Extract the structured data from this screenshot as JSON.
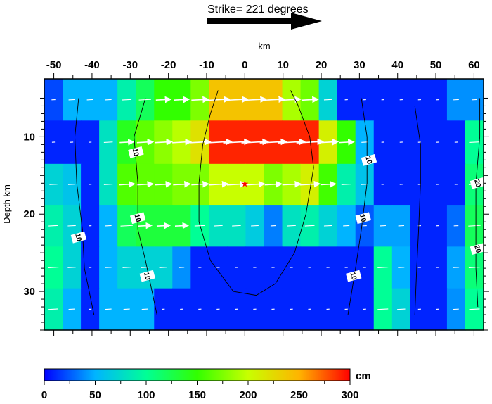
{
  "header": {
    "strike_text": "Strike= 221 degrees",
    "x_unit": "km"
  },
  "colorbar": {
    "unit": "cm",
    "ticks": [
      "0",
      "50",
      "100",
      "150",
      "200",
      "250",
      "300"
    ],
    "range": [
      0,
      300
    ]
  },
  "chart_data": {
    "type": "heatmap",
    "title": "",
    "xlabel": "km",
    "ylabel": "Depth km",
    "xlim": [
      -52.5,
      62.5
    ],
    "ylim": [
      2.5,
      35
    ],
    "x_ticks": [
      -50,
      -40,
      -30,
      -20,
      -10,
      0,
      10,
      20,
      30,
      40,
      50,
      60
    ],
    "y_ticks": [
      10,
      20,
      30
    ],
    "y_inverted": true,
    "colormap": [
      "#0000ff",
      "#00b4ff",
      "#00ff96",
      "#32ff00",
      "#c8ff00",
      "#ffb400",
      "#ff0000"
    ],
    "value_unit": "cm",
    "hypocenter": {
      "x": 0,
      "y": 16
    },
    "rows": [
      {
        "top": 2.5,
        "bottom": 7.9,
        "values": [
          20,
          50,
          50,
          50,
          90,
          120,
          150,
          150,
          175,
          240,
          240,
          240,
          240,
          190,
          170,
          70,
          10,
          10,
          10,
          10,
          10,
          10,
          40,
          40
        ]
      },
      {
        "top": 7.9,
        "bottom": 13.5,
        "values": [
          10,
          10,
          10,
          80,
          140,
          165,
          180,
          195,
          220,
          290,
          290,
          290,
          290,
          290,
          290,
          210,
          150,
          50,
          10,
          10,
          10,
          10,
          10,
          100
        ]
      },
      {
        "top": 13.5,
        "bottom": 18.8,
        "values": [
          70,
          60,
          10,
          80,
          160,
          165,
          165,
          175,
          175,
          200,
          200,
          200,
          175,
          190,
          210,
          155,
          90,
          60,
          10,
          10,
          10,
          10,
          10,
          110
        ]
      },
      {
        "top": 18.8,
        "bottom": 24.2,
        "values": [
          90,
          70,
          10,
          50,
          120,
          130,
          130,
          130,
          100,
          80,
          80,
          65,
          35,
          80,
          90,
          70,
          50,
          25,
          45,
          45,
          10,
          10,
          30,
          120
        ]
      },
      {
        "top": 24.2,
        "bottom": 29.6,
        "values": [
          100,
          70,
          10,
          50,
          70,
          70,
          70,
          40,
          10,
          10,
          10,
          10,
          10,
          10,
          10,
          10,
          10,
          10,
          100,
          50,
          10,
          10,
          45,
          110
        ]
      },
      {
        "top": 29.6,
        "bottom": 35,
        "values": [
          90,
          50,
          10,
          50,
          50,
          50,
          10,
          10,
          10,
          10,
          10,
          10,
          10,
          10,
          10,
          10,
          10,
          10,
          100,
          70,
          10,
          10,
          40,
          100
        ]
      }
    ],
    "contours": [
      {
        "label": "10",
        "points": [
          [
            -43.5,
            5
          ],
          [
            -44.5,
            10
          ],
          [
            -44,
            16
          ],
          [
            -42.5,
            22
          ],
          [
            -42,
            27
          ],
          [
            -39.5,
            33
          ]
        ],
        "label_at": [
          -43.5,
          23
        ]
      },
      {
        "label": "10",
        "points": [
          [
            -26,
            5
          ],
          [
            -29,
            10
          ],
          [
            -28,
            16
          ],
          [
            -28,
            22
          ],
          [
            -26,
            26
          ],
          [
            -23,
            33
          ]
        ],
        "label_at": [
          -28.5,
          12
        ]
      },
      {
        "label": "10",
        "points": [
          [
            -26,
            5
          ],
          [
            -29,
            10
          ],
          [
            -28,
            16
          ],
          [
            -28,
            22
          ],
          [
            -26,
            26
          ],
          [
            -23,
            33
          ]
        ],
        "label_at": [
          -28,
          20.5
        ]
      },
      {
        "label": "10",
        "points": [
          [
            -26,
            5
          ],
          [
            -29,
            10
          ],
          [
            -28,
            16
          ],
          [
            -28,
            22
          ],
          [
            -26,
            26
          ],
          [
            -23,
            33
          ]
        ],
        "label_at": [
          -25.5,
          28
        ]
      },
      {
        "label": "",
        "points": [
          [
            -7,
            4
          ],
          [
            -9,
            7
          ],
          [
            -11,
            11
          ],
          [
            -12,
            16
          ],
          [
            -12,
            21
          ],
          [
            -9,
            26
          ],
          [
            -3,
            30
          ],
          [
            3,
            30.5
          ],
          [
            8,
            29
          ],
          [
            13,
            25
          ],
          [
            16,
            20
          ],
          [
            18,
            14
          ],
          [
            17,
            10
          ],
          [
            14,
            6
          ],
          [
            12,
            4
          ]
        ],
        "label_at": null
      },
      {
        "label": "10",
        "points": [
          [
            30.5,
            5
          ],
          [
            32,
            10
          ],
          [
            32,
            16
          ],
          [
            30.5,
            22
          ],
          [
            29,
            27
          ],
          [
            27,
            33
          ]
        ],
        "label_at": [
          32.5,
          13
        ]
      },
      {
        "label": "10",
        "points": [
          [
            30.5,
            5
          ],
          [
            32,
            10
          ],
          [
            32,
            16
          ],
          [
            30.5,
            22
          ],
          [
            29,
            27
          ],
          [
            27,
            33
          ]
        ],
        "label_at": [
          31,
          20.5
        ]
      },
      {
        "label": "10",
        "points": [
          [
            30.5,
            5
          ],
          [
            32,
            10
          ],
          [
            32,
            16
          ],
          [
            30.5,
            22
          ],
          [
            29,
            27
          ],
          [
            27,
            33
          ]
        ],
        "label_at": [
          28.5,
          28
        ]
      },
      {
        "label": "",
        "points": [
          [
            44.5,
            6
          ],
          [
            46,
            11
          ],
          [
            46,
            16
          ],
          [
            45.5,
            22
          ],
          [
            45,
            27
          ],
          [
            44.5,
            33
          ]
        ],
        "label_at": null
      },
      {
        "label": "20",
        "points": [
          [
            61.5,
            5
          ],
          [
            61.5,
            10
          ],
          [
            60.5,
            16
          ],
          [
            60.5,
            22
          ],
          [
            60.5,
            27
          ],
          [
            61,
            32
          ]
        ],
        "label_at": [
          61,
          16
        ]
      },
      {
        "label": "20",
        "points": [
          [
            61.5,
            5
          ],
          [
            61.5,
            10
          ],
          [
            60.5,
            16
          ],
          [
            60.5,
            22
          ],
          [
            60.5,
            27
          ],
          [
            61,
            32
          ]
        ],
        "label_at": [
          61,
          24.5
        ]
      }
    ]
  }
}
